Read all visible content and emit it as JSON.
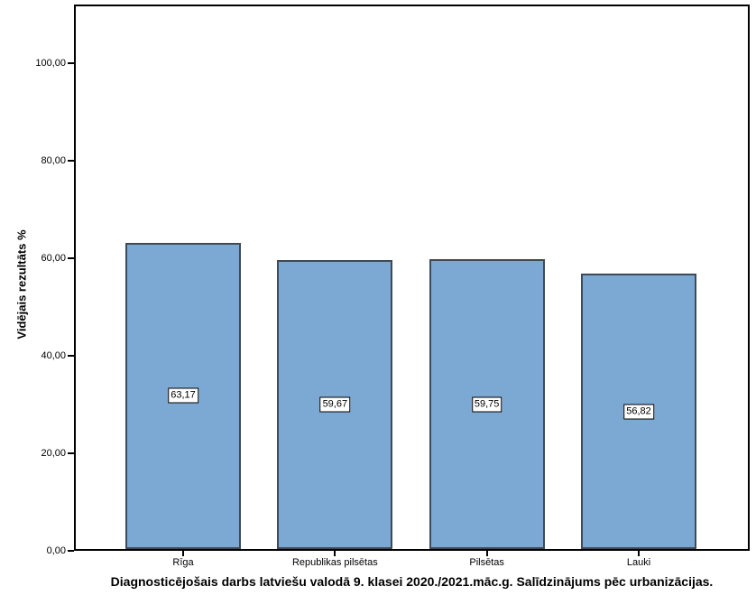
{
  "page": {
    "background_color": "#ffffff"
  },
  "chart_data": {
    "type": "bar",
    "title": "Diagnosticējošais darbs latviešu valodā 9. klasei 2020./2021.māc.g. Salīdzinājums pēc urbanizācijas.",
    "xlabel": "",
    "ylabel": "Vidējais rezultāts %",
    "categories": [
      "Rīga",
      "Republikas pilsētas",
      "Pilsētas",
      "Lauki"
    ],
    "values": [
      63.17,
      59.67,
      59.75,
      56.82
    ],
    "value_labels": [
      "63,17",
      "59,67",
      "59,75",
      "56,82"
    ],
    "ylim": [
      0,
      112
    ],
    "yticks": [
      0,
      20,
      40,
      60,
      80,
      100
    ],
    "ytick_labels": [
      "0,00",
      "20,00",
      "40,00",
      "60,00",
      "80,00",
      "100,00"
    ],
    "grid": false,
    "legend": null,
    "decimal_separator": ",",
    "colors": {
      "bar_fill": "#7CA9D4",
      "bar_border": "#3E4A58",
      "axis": "#000000",
      "text": "#000000",
      "value_box_bg": "#ffffff",
      "value_box_border": "#000000"
    }
  }
}
